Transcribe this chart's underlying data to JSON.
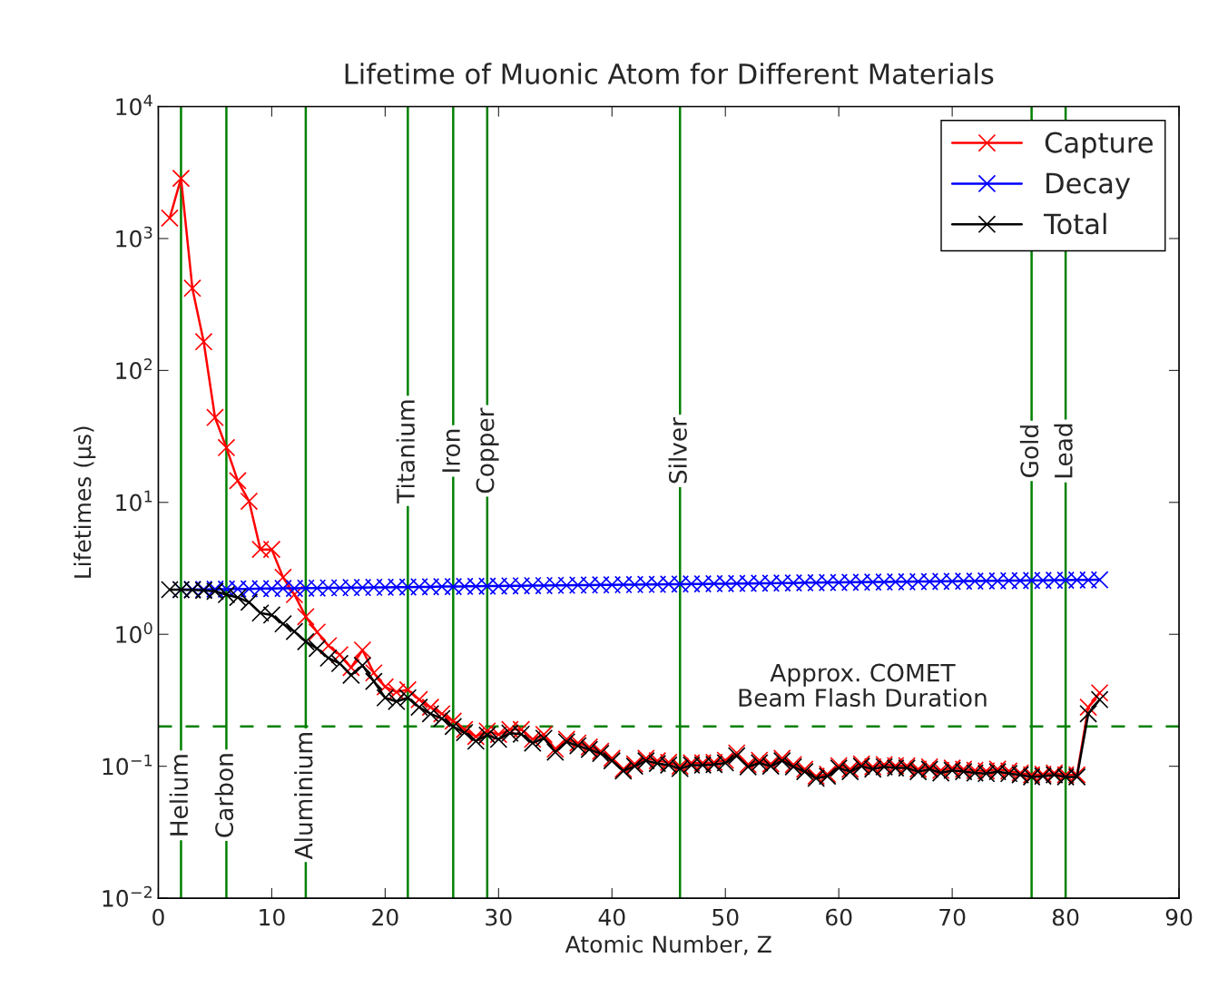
{
  "chart_data": {
    "type": "line",
    "title": "Lifetime of Muonic Atom for Different Materials",
    "xlabel": "Atomic Number, Z",
    "ylabel": "Lifetimes (μs)",
    "x": [
      1,
      2,
      3,
      4,
      5,
      6,
      7,
      8,
      9,
      10,
      11,
      12,
      13,
      14,
      15,
      16,
      17,
      18,
      19,
      20,
      21,
      22,
      23,
      24,
      25,
      26,
      27,
      28,
      29,
      30,
      31,
      32,
      33,
      34,
      35,
      36,
      37,
      38,
      39,
      40,
      41,
      42,
      43,
      44,
      45,
      46,
      47,
      48,
      49,
      50,
      51,
      52,
      53,
      54,
      55,
      56,
      57,
      58,
      59,
      60,
      61,
      62,
      63,
      64,
      65,
      66,
      67,
      68,
      69,
      70,
      71,
      72,
      73,
      74,
      75,
      76,
      77,
      78,
      79,
      80,
      81,
      82,
      83
    ],
    "series": [
      {
        "name": "Capture",
        "color": "#ff0000",
        "values": [
          1430,
          2860,
          420,
          165,
          44,
          26,
          14.6,
          10.2,
          4.4,
          4.4,
          2.7,
          2.0,
          1.36,
          1.04,
          0.82,
          0.7,
          0.56,
          0.76,
          0.51,
          0.4,
          0.365,
          0.38,
          0.32,
          0.28,
          0.25,
          0.22,
          0.19,
          0.168,
          0.185,
          0.174,
          0.19,
          0.19,
          0.16,
          0.174,
          0.135,
          0.16,
          0.15,
          0.14,
          0.13,
          0.115,
          0.095,
          0.104,
          0.115,
          0.11,
          0.107,
          0.1,
          0.106,
          0.106,
          0.107,
          0.111,
          0.126,
          0.103,
          0.111,
          0.104,
          0.115,
          0.103,
          0.095,
          0.084,
          0.087,
          0.101,
          0.095,
          0.104,
          0.099,
          0.103,
          0.101,
          0.101,
          0.095,
          0.099,
          0.093,
          0.097,
          0.095,
          0.093,
          0.092,
          0.095,
          0.092,
          0.089,
          0.086,
          0.087,
          0.089,
          0.086,
          0.086,
          0.28,
          0.36
        ]
      },
      {
        "name": "Decay",
        "color": "#0000ff",
        "values": [
          null,
          2.18,
          2.19,
          2.19,
          2.2,
          2.2,
          2.21,
          2.21,
          2.22,
          2.22,
          2.23,
          2.23,
          2.24,
          2.24,
          2.25,
          2.25,
          2.26,
          2.26,
          2.27,
          2.27,
          2.28,
          2.28,
          2.29,
          2.29,
          2.3,
          2.3,
          2.31,
          2.31,
          2.32,
          2.32,
          2.33,
          2.33,
          2.34,
          2.34,
          2.35,
          2.35,
          2.36,
          2.36,
          2.37,
          2.37,
          2.38,
          2.38,
          2.39,
          2.39,
          2.4,
          2.4,
          2.41,
          2.41,
          2.42,
          2.42,
          2.43,
          2.43,
          2.44,
          2.44,
          2.45,
          2.45,
          2.46,
          2.46,
          2.47,
          2.47,
          2.48,
          2.48,
          2.49,
          2.49,
          2.5,
          2.5,
          2.51,
          2.51,
          2.52,
          2.52,
          2.53,
          2.53,
          2.54,
          2.54,
          2.55,
          2.55,
          2.56,
          2.56,
          2.57,
          2.57,
          2.58,
          2.58,
          2.59
        ]
      },
      {
        "name": "Total",
        "color": "#000000",
        "values": [
          2.18,
          2.18,
          2.17,
          2.15,
          2.12,
          2.0,
          1.9,
          1.75,
          1.45,
          1.4,
          1.2,
          1.05,
          0.88,
          0.78,
          0.66,
          0.6,
          0.49,
          0.58,
          0.44,
          0.33,
          0.31,
          0.33,
          0.28,
          0.25,
          0.23,
          0.2,
          0.18,
          0.155,
          0.172,
          0.16,
          0.178,
          0.175,
          0.15,
          0.163,
          0.128,
          0.153,
          0.143,
          0.134,
          0.125,
          0.11,
          0.092,
          0.1,
          0.11,
          0.105,
          0.102,
          0.096,
          0.102,
          0.102,
          0.103,
          0.106,
          0.12,
          0.099,
          0.106,
          0.1,
          0.11,
          0.099,
          0.091,
          0.081,
          0.084,
          0.097,
          0.091,
          0.1,
          0.095,
          0.099,
          0.097,
          0.097,
          0.091,
          0.095,
          0.089,
          0.093,
          0.091,
          0.089,
          0.088,
          0.091,
          0.088,
          0.086,
          0.083,
          0.084,
          0.086,
          0.083,
          0.083,
          0.25,
          0.32
        ]
      }
    ],
    "xlim": [
      0,
      90
    ],
    "xticks": [
      0,
      10,
      20,
      30,
      40,
      50,
      60,
      70,
      80,
      90
    ],
    "ylim": [
      0.01,
      10000
    ],
    "log": true,
    "yticks": [
      {
        "value": 0.01,
        "label": "10$^{−2}$"
      },
      {
        "value": 0.1,
        "label": "10$^{−1}$"
      },
      {
        "value": 1,
        "label": "10$^{0}$"
      },
      {
        "value": 10,
        "label": "10$^{1}$"
      },
      {
        "value": 100,
        "label": "10$^{2}$"
      },
      {
        "value": 1000,
        "label": "10$^{3}$"
      },
      {
        "value": 10000,
        "label": "10$^{4}$"
      }
    ],
    "ref_lines": [
      {
        "axis": "x",
        "value": 2,
        "label": "Helium",
        "color": "#008000"
      },
      {
        "axis": "x",
        "value": 6,
        "label": "Carbon",
        "color": "#008000"
      },
      {
        "axis": "x",
        "value": 13,
        "label": "Aluminium",
        "color": "#008000"
      },
      {
        "axis": "x",
        "value": 22,
        "label": "Titanium",
        "color": "#008000"
      },
      {
        "axis": "x",
        "value": 26,
        "label": "Iron",
        "color": "#008000"
      },
      {
        "axis": "x",
        "value": 29,
        "label": "Copper",
        "color": "#008000"
      },
      {
        "axis": "x",
        "value": 46,
        "label": "Silver",
        "color": "#008000"
      },
      {
        "axis": "x",
        "value": 77,
        "label": "Gold",
        "color": "#008000"
      },
      {
        "axis": "x",
        "value": 80,
        "label": "Lead",
        "color": "#008000"
      },
      {
        "axis": "y",
        "value": 0.2,
        "label": "Approx. COMET\nBeam Flash Duration",
        "color": "#008000",
        "line_style": "dashed"
      }
    ],
    "marker": "cross",
    "line_style": "solid",
    "legend": "top right",
    "grid": false
  }
}
